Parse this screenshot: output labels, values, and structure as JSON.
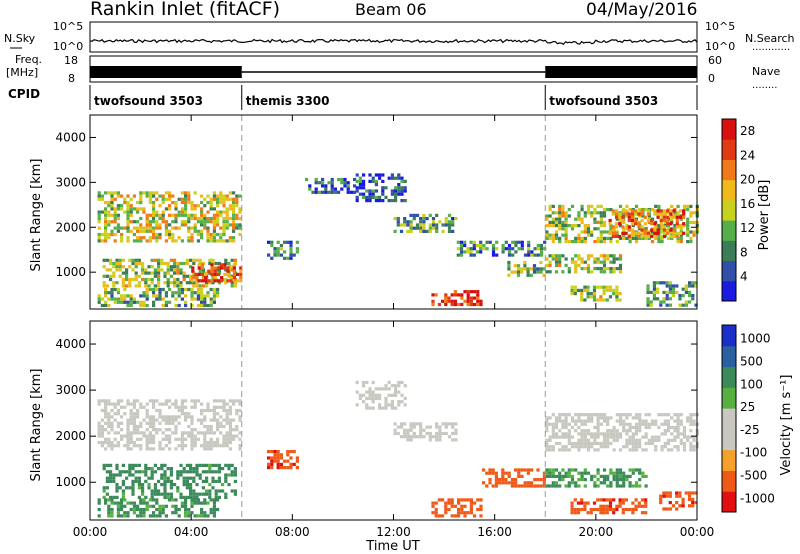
{
  "header": {
    "station": "Rankin Inlet (fitACF)",
    "beam": "Beam 06",
    "date": "04/May/2016"
  },
  "top_panels": {
    "nsky_label": "N.Sky",
    "nsearch_label": "N.Search",
    "noise_ticks": [
      "10^5",
      "10^0"
    ],
    "freq_label_1": "Freq.",
    "freq_label_2": "[MHz]",
    "freq_ticks": [
      "18",
      "8"
    ],
    "nave_label": "Nave",
    "nave_ticks": [
      "60",
      "0"
    ],
    "cpid_label": "CPID"
  },
  "cpid_segments": [
    {
      "label": "twofsound 3503",
      "start_h": 0,
      "end_h": 6
    },
    {
      "label": "themis 3300",
      "start_h": 6,
      "end_h": 18
    },
    {
      "label": "twofsound 3503",
      "start_h": 18,
      "end_h": 24
    }
  ],
  "colors": {
    "power_scale": [
      "#1b1be0",
      "#2f4fa8",
      "#3c7d58",
      "#55b04a",
      "#c8d21e",
      "#f0b81a",
      "#f07a1a",
      "#e03a14",
      "#d80f0f"
    ],
    "velocity_scale": [
      "#e01010",
      "#f05a18",
      "#f5a02a",
      "#c8c8c0",
      "#c8c8c0",
      "#58b040",
      "#3a8a5a",
      "#2a5fa0",
      "#1a2fc8"
    ]
  },
  "chart_data": [
    {
      "type": "heatmap",
      "name_hint": "power",
      "ylabel": "Slant Range [km]",
      "xlabel": "",
      "x_ticks": [
        "00:00",
        "04:00",
        "08:00",
        "12:00",
        "16:00",
        "20:00",
        "00:00"
      ],
      "y_ticks": [
        "1000",
        "2000",
        "3000",
        "4000"
      ],
      "xlim_hours": [
        0,
        24
      ],
      "ylim_km": [
        180,
        4500
      ],
      "colorbar_label": "Power [dB]",
      "colorbar_ticks": [
        "4",
        "8",
        "12",
        "16",
        "20",
        "24",
        "28"
      ],
      "colorbar_range": [
        0,
        30
      ],
      "regions": [
        {
          "t0": 0.3,
          "t1": 5.9,
          "r0": 1700,
          "r1": 2800,
          "v": 16
        },
        {
          "t0": 0.5,
          "t1": 5.8,
          "r0": 700,
          "r1": 1300,
          "v": 14
        },
        {
          "t0": 4.0,
          "t1": 5.9,
          "r0": 800,
          "r1": 1200,
          "v": 24
        },
        {
          "t0": 0.3,
          "t1": 5.0,
          "r0": 250,
          "r1": 650,
          "v": 12
        },
        {
          "t0": 7.0,
          "t1": 8.2,
          "r0": 1300,
          "r1": 1700,
          "v": 8
        },
        {
          "t0": 8.5,
          "t1": 10.5,
          "r0": 2800,
          "r1": 3100,
          "v": 6
        },
        {
          "t0": 10.5,
          "t1": 12.5,
          "r0": 2600,
          "r1": 3200,
          "v": 5
        },
        {
          "t0": 12.0,
          "t1": 14.5,
          "r0": 1900,
          "r1": 2300,
          "v": 10
        },
        {
          "t0": 14.5,
          "t1": 18.0,
          "r0": 1350,
          "r1": 1700,
          "v": 8
        },
        {
          "t0": 13.5,
          "t1": 15.5,
          "r0": 250,
          "r1": 600,
          "v": 27
        },
        {
          "t0": 16.5,
          "t1": 18.0,
          "r0": 900,
          "r1": 1250,
          "v": 12
        },
        {
          "t0": 18.0,
          "t1": 24.0,
          "r0": 1700,
          "r1": 2500,
          "v": 14
        },
        {
          "t0": 20.5,
          "t1": 23.5,
          "r0": 1800,
          "r1": 2400,
          "v": 22
        },
        {
          "t0": 18.0,
          "t1": 21.0,
          "r0": 1000,
          "r1": 1400,
          "v": 14
        },
        {
          "t0": 19.0,
          "t1": 21.0,
          "r0": 400,
          "r1": 700,
          "v": 14
        },
        {
          "t0": 22.0,
          "t1": 24.0,
          "r0": 300,
          "r1": 800,
          "v": 10
        }
      ]
    },
    {
      "type": "heatmap",
      "name_hint": "velocity",
      "ylabel": "Slant Range [km]",
      "xlabel": "Time UT",
      "x_ticks": [
        "00:00",
        "04:00",
        "08:00",
        "12:00",
        "16:00",
        "20:00",
        "00:00"
      ],
      "y_ticks": [
        "1000",
        "2000",
        "3000",
        "4000"
      ],
      "xlim_hours": [
        0,
        24
      ],
      "ylim_km": [
        180,
        4500
      ],
      "colorbar_label": "Velocity [m s⁻¹]",
      "colorbar_ticks": [
        "1000",
        "500",
        "100",
        "25",
        "-25",
        "-100",
        "-500",
        "-1000"
      ],
      "regions": [
        {
          "t0": 0.3,
          "t1": 5.9,
          "r0": 1700,
          "r1": 2800,
          "v": 0
        },
        {
          "t0": 0.5,
          "t1": 5.8,
          "r0": 700,
          "r1": 1400,
          "v": 150
        },
        {
          "t0": 0.3,
          "t1": 5.0,
          "r0": 250,
          "r1": 650,
          "v": 120
        },
        {
          "t0": 7.0,
          "t1": 8.2,
          "r0": 1300,
          "r1": 1700,
          "v": -400
        },
        {
          "t0": 10.5,
          "t1": 12.5,
          "r0": 2600,
          "r1": 3200,
          "v": 0
        },
        {
          "t0": 12.0,
          "t1": 14.5,
          "r0": 1900,
          "r1": 2300,
          "v": 0
        },
        {
          "t0": 13.5,
          "t1": 15.5,
          "r0": 300,
          "r1": 650,
          "v": -300
        },
        {
          "t0": 15.5,
          "t1": 18.0,
          "r0": 900,
          "r1": 1300,
          "v": -300
        },
        {
          "t0": 18.0,
          "t1": 24.0,
          "r0": 1700,
          "r1": 2500,
          "v": 0
        },
        {
          "t0": 18.0,
          "t1": 22.0,
          "r0": 900,
          "r1": 1300,
          "v": 120
        },
        {
          "t0": 19.0,
          "t1": 22.0,
          "r0": 350,
          "r1": 650,
          "v": -400
        },
        {
          "t0": 22.5,
          "t1": 24.0,
          "r0": 400,
          "r1": 800,
          "v": -400
        }
      ]
    }
  ]
}
